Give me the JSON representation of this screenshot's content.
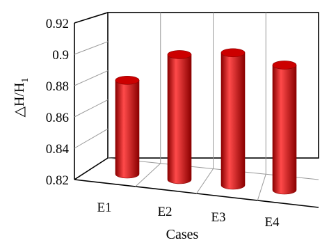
{
  "chart_data": {
    "type": "bar",
    "bar_style": "3d-cylinder",
    "categories": [
      "E1",
      "E2",
      "E3",
      "E4"
    ],
    "values": [
      0.883,
      0.904,
      0.909,
      0.904
    ],
    "xlabel": "Cases",
    "ylabel_base": "△H/H",
    "ylabel_subscript": "1",
    "ylim": [
      0.82,
      0.92
    ],
    "yticks": [
      0.82,
      0.84,
      0.86,
      0.88,
      0.9,
      0.92
    ],
    "ytick_labels": [
      "0.82",
      "0.84",
      "0.86",
      "0.88",
      "0.9",
      "0.92"
    ],
    "grid": true,
    "legend": "none",
    "colors": {
      "bar": "#cc0000",
      "bar_dark": "#8a0000",
      "bar_light": "#ff4a4a",
      "frame": "#000000",
      "grid": "#999999"
    }
  }
}
